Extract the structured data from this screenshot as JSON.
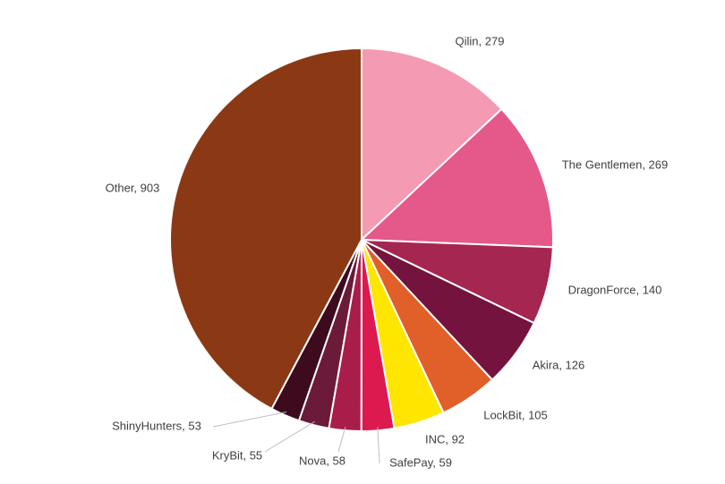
{
  "chart_data": {
    "type": "pie",
    "values": [
      279,
      269,
      140,
      126,
      105,
      92,
      59,
      58,
      55,
      53,
      903
    ],
    "value_labels": [
      "Qilin, 279",
      "The Gentlemen, 269",
      "DragonForce, 140",
      "Akira, 126",
      "LockBit, 105",
      "INC, 92",
      "SafePay, 59",
      "Nova, 58",
      "KryBit, 55",
      "ShinyHunters, 53",
      "Other, 903"
    ],
    "colors": [
      "#f49ab2",
      "#e5588a",
      "#a52650",
      "#74133d",
      "#e15f28",
      "#ffe600",
      "#dc1a50",
      "#a81d4a",
      "#6b1a3a",
      "#3d0a1e",
      "#8b3914"
    ]
  }
}
